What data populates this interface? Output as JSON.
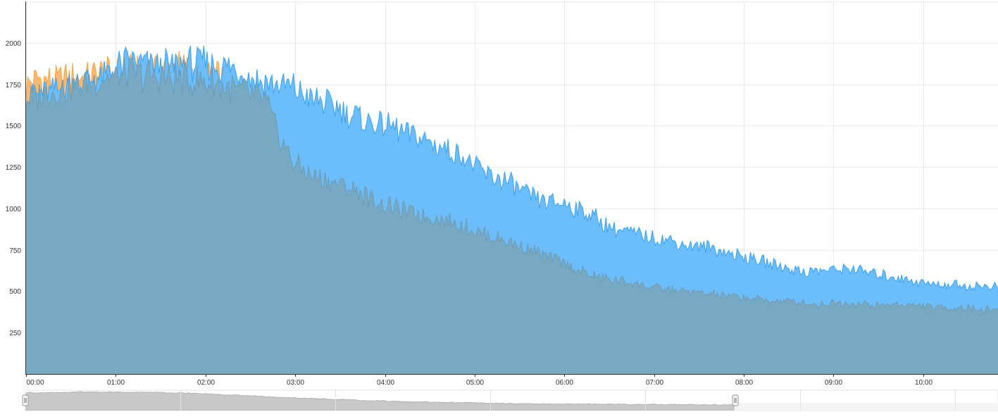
{
  "chart_data": {
    "type": "area",
    "title": "",
    "xlabel": "",
    "ylabel": "",
    "x_range": [
      "00:00",
      "10:50"
    ],
    "ylim": [
      0,
      2250
    ],
    "grid": true,
    "legend": "none",
    "y_ticks": [
      250,
      500,
      750,
      1000,
      1250,
      1500,
      1750,
      2000
    ],
    "x_ticks": [
      "00:00",
      "01:00",
      "02:00",
      "03:00",
      "04:00",
      "05:00",
      "06:00",
      "07:00",
      "08:00",
      "09:00",
      "10:00"
    ],
    "series": [
      {
        "color": "#fbb870",
        "x": [
          "00:00",
          "00:10",
          "00:20",
          "00:30",
          "00:40",
          "00:50",
          "01:00",
          "01:10",
          "01:20",
          "01:30",
          "01:40",
          "01:50",
          "02:00",
          "02:10",
          "02:20",
          "02:30",
          "02:40",
          "02:50",
          "03:00"
        ],
        "values": [
          1740,
          1790,
          1760,
          1800,
          1780,
          1810,
          1810,
          1840,
          1830,
          1850,
          1860,
          1840,
          1780,
          1800,
          1720,
          1600,
          1400,
          1200,
          1150
        ]
      },
      {
        "color": "#6cbdfb",
        "x": [
          "00:00",
          "00:10",
          "00:20",
          "00:30",
          "00:40",
          "00:50",
          "01:00",
          "01:10",
          "01:20",
          "01:30",
          "01:40",
          "01:50",
          "02:00",
          "02:10",
          "02:20",
          "02:30",
          "02:40",
          "02:50",
          "03:00",
          "03:10",
          "03:20",
          "03:30",
          "03:40",
          "03:50",
          "04:00",
          "04:10",
          "04:20",
          "04:30",
          "04:40",
          "04:50",
          "05:00",
          "05:10",
          "05:20",
          "05:30",
          "05:40",
          "05:50",
          "06:00",
          "06:10",
          "06:20",
          "06:30",
          "06:40",
          "06:50",
          "07:00",
          "07:10",
          "07:20",
          "07:30",
          "07:40",
          "07:50",
          "08:00",
          "08:10",
          "08:20",
          "08:30",
          "08:40",
          "08:50",
          "09:00",
          "09:10",
          "09:20",
          "09:30",
          "09:40",
          "09:50",
          "10:00",
          "10:10",
          "10:20",
          "10:30",
          "10:40",
          "10:50"
        ],
        "values": [
          1660,
          1690,
          1710,
          1730,
          1760,
          1780,
          1840,
          1890,
          1870,
          1850,
          1860,
          1870,
          1880,
          1860,
          1830,
          1790,
          1760,
          1740,
          1720,
          1660,
          1640,
          1600,
          1560,
          1520,
          1500,
          1470,
          1440,
          1400,
          1360,
          1330,
          1250,
          1200,
          1170,
          1110,
          1060,
          1040,
          1030,
          990,
          950,
          890,
          860,
          840,
          820,
          810,
          780,
          770,
          760,
          730,
          710,
          690,
          660,
          640,
          620,
          620,
          630,
          640,
          620,
          600,
          590,
          570,
          550,
          540,
          540,
          530,
          530,
          530
        ]
      },
      {
        "color": "#78a9c3",
        "x": [
          "00:00",
          "00:10",
          "00:20",
          "00:30",
          "00:40",
          "00:50",
          "01:00",
          "01:10",
          "01:20",
          "01:30",
          "01:40",
          "01:50",
          "02:00",
          "02:10",
          "02:20",
          "02:30",
          "02:40",
          "02:50",
          "03:00",
          "03:10",
          "03:20",
          "03:30",
          "03:40",
          "03:50",
          "04:00",
          "04:10",
          "04:20",
          "04:30",
          "04:40",
          "04:50",
          "05:00",
          "05:10",
          "05:20",
          "05:30",
          "05:40",
          "05:50",
          "06:00",
          "06:10",
          "06:20",
          "06:30",
          "06:40",
          "06:50",
          "07:00",
          "07:10",
          "07:20",
          "07:30",
          "07:40",
          "07:50",
          "08:00",
          "08:10",
          "08:20",
          "08:30",
          "08:40",
          "08:50",
          "09:00",
          "09:10",
          "09:20",
          "09:30",
          "09:40",
          "09:50",
          "10:00",
          "10:10",
          "10:20",
          "10:30",
          "10:40",
          "10:50"
        ],
        "values": [
          1660,
          1690,
          1710,
          1730,
          1760,
          1780,
          1800,
          1820,
          1800,
          1790,
          1780,
          1770,
          1760,
          1740,
          1720,
          1690,
          1650,
          1420,
          1270,
          1200,
          1170,
          1140,
          1110,
          1060,
          1020,
          990,
          970,
          950,
          930,
          900,
          870,
          830,
          810,
          770,
          740,
          700,
          670,
          620,
          590,
          570,
          560,
          540,
          520,
          510,
          500,
          490,
          480,
          470,
          460,
          450,
          440,
          440,
          430,
          420,
          430,
          430,
          420,
          410,
          420,
          420,
          410,
          400,
          400,
          400,
          390,
          390
        ]
      }
    ],
    "navigator": {
      "range_start": "00:00",
      "range_end": "08:00",
      "values": [
        1700,
        1750,
        1800,
        1780,
        1740,
        1650,
        1500,
        1350,
        1200,
        1080,
        950,
        860,
        780,
        720,
        660,
        620,
        600,
        580,
        560,
        540,
        530,
        520
      ]
    }
  }
}
